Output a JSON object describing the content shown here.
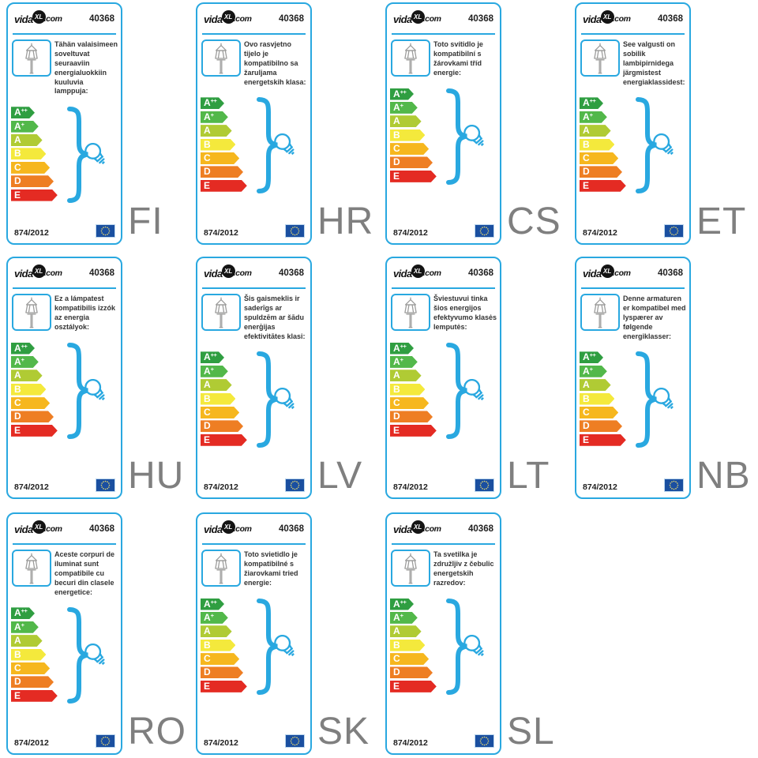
{
  "brand": {
    "prefix": "vida",
    "circle": "XL",
    "suffix": ".com"
  },
  "product_id": "40368",
  "regulation": "874/2012",
  "energy_classes": [
    {
      "label": "A",
      "sup": "++",
      "color": "#2f9e41"
    },
    {
      "label": "A",
      "sup": "+",
      "color": "#52b84a"
    },
    {
      "label": "A",
      "sup": "",
      "color": "#b0cb34"
    },
    {
      "label": "B",
      "sup": "",
      "color": "#f4e93c"
    },
    {
      "label": "C",
      "sup": "",
      "color": "#f6b71e"
    },
    {
      "label": "D",
      "sup": "",
      "color": "#ee7e23"
    },
    {
      "label": "E",
      "sup": "",
      "color": "#e42b23"
    }
  ],
  "cards": [
    {
      "lang": "FI",
      "description": "Tähän valaisimeen soveltuvat seuraaviin energialuokkiin kuuluvia lamppuja:"
    },
    {
      "lang": "HR",
      "description": "Ovo rasvjetno tijelo je kompatibilno sa žaruljama energetskih klasa:"
    },
    {
      "lang": "CS",
      "description": "Toto svítidlo je kompatibilní s žárovkami tříd energie:"
    },
    {
      "lang": "ET",
      "description": "See valgusti on sobilik lambipirnidega järgmistest energiaklassidest:"
    },
    {
      "lang": "HU",
      "description": "Ez a lámpatest kompatibilis izzók az energia osztályok:"
    },
    {
      "lang": "LV",
      "description": "Šis gaismeklis ir saderīgs ar spuldzēm ar šādu enerģijas efektivitātes klasi:"
    },
    {
      "lang": "LT",
      "description": "Šviestuvui tinka šios energijos efektyvumo klasės lemputės:"
    },
    {
      "lang": "NB",
      "description": "Denne armaturen er kompatibel med lyspærer av følgende energiklasser:"
    },
    {
      "lang": "RO",
      "description": "Aceste corpuri de iluminat sunt compatibile cu becuri din clasele energetice:"
    },
    {
      "lang": "SK",
      "description": "Toto svietidlo je kompatibilné s žiarovkami tried energie:"
    },
    {
      "lang": "SL",
      "description": "Ta svetilka je združljiv z čebulic energetskih razredov:"
    }
  ],
  "icons": {
    "lamp": "outdoor-post-lantern",
    "brace": "right-curly-brace",
    "bulb": "incandescent-light-bulb",
    "eu_flag": "european-union-flag"
  },
  "colors": {
    "accent_blue": "#29a8e0",
    "text_dark": "#333333",
    "eu_flag_blue": "#1a4fa0",
    "eu_star_yellow": "#f3df6a",
    "language_gray": "#7f7f7f",
    "icon_gray": "#9c9c9b"
  }
}
